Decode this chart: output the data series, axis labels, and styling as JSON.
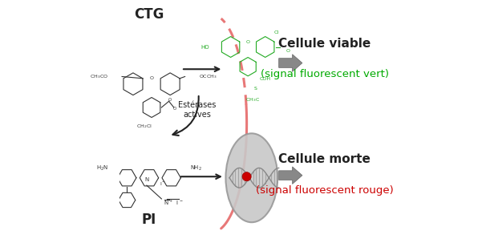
{
  "bg_color": "#ffffff",
  "title_ctg": "CTG",
  "title_pi": "PI",
  "label_esterases": "Estérases\nactives",
  "label_viable_line1": "Cellule viable",
  "label_viable_line2": "(signal fluorescent vert)",
  "label_morte_line1": "Cellule morte",
  "label_morte_line2": "(signal fluorescent rouge)",
  "color_viable": "#00aa00",
  "color_morte": "#cc0000",
  "color_black": "#222222",
  "color_gray_arrow": "#808080",
  "color_pink_arc": "#e87878",
  "color_green_mol": "#22aa22",
  "color_cell_fill": "#c8c8c8",
  "color_cell_edge": "#999999",
  "color_mol": "#333333",
  "color_dna": "#888888"
}
